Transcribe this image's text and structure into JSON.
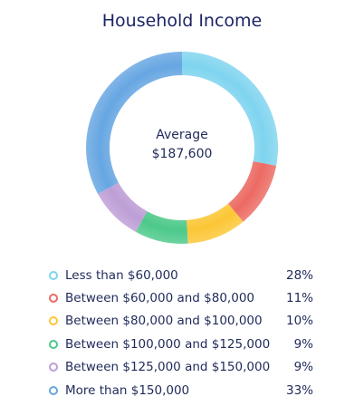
{
  "chart_data": {
    "type": "pie",
    "title": "Household Income",
    "center_label": "Average",
    "center_value": "$187,600",
    "categories": [
      "Less than $60,000",
      "Between $60,000 and $80,000",
      "Between $80,000 and $100,000",
      "Between $100,000 and $125,000",
      "Between $125,000 and $150,000",
      "More than $150,000"
    ],
    "values": [
      28,
      11,
      10,
      9,
      9,
      33
    ],
    "value_labels": [
      "28%",
      "11%",
      "10%",
      "9%",
      "9%",
      "33%"
    ],
    "colors": [
      "#7fd4ef",
      "#ec6a63",
      "#fcc635",
      "#4cc98a",
      "#bd9ed6",
      "#66a6e2"
    ],
    "legend_position": "bottom"
  }
}
